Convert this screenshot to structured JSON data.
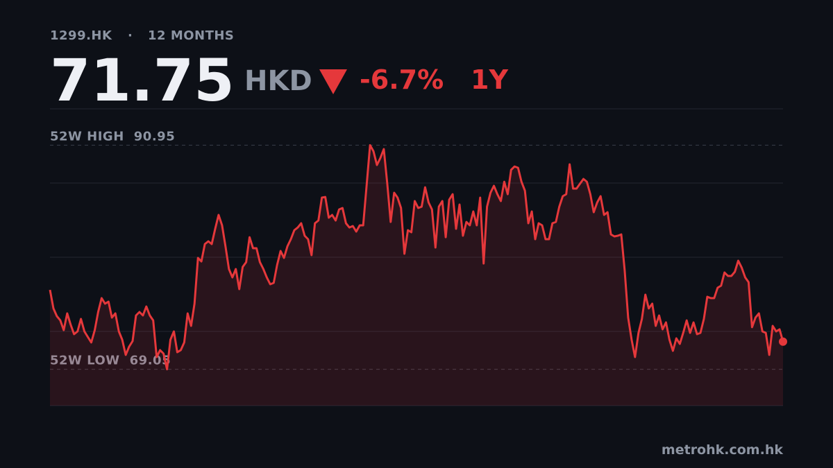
{
  "header": {
    "ticker": "1299.HK",
    "separator": "·",
    "period": "12 MONTHS",
    "price": "71.75",
    "currency": "HKD",
    "change": "-6.7%",
    "range": "1Y"
  },
  "chart_data": {
    "type": "line",
    "color": "#e5383b",
    "ylim": [
      65.5,
      94.5
    ],
    "yticks": [
      65.5,
      72.75,
      80,
      87.25,
      94.5
    ],
    "grid": true,
    "high": {
      "label": "52W HIGH",
      "value": 90.95
    },
    "low": {
      "label": "52W LOW",
      "value": 69.05
    },
    "values": [
      76.81,
      74.99,
      74.24,
      73.83,
      72.88,
      74.51,
      73.43,
      72.48,
      72.75,
      73.97,
      72.75,
      72.21,
      71.67,
      72.88,
      74.65,
      76.0,
      75.46,
      75.66,
      74.1,
      74.51,
      72.75,
      71.94,
      70.45,
      71.26,
      71.8,
      74.31,
      74.65,
      74.31,
      75.19,
      74.31,
      73.83,
      70.24,
      70.92,
      70.58,
      69.05,
      71.94,
      72.75,
      70.72,
      70.92,
      71.67,
      74.51,
      73.29,
      75.46,
      79.93,
      79.59,
      81.29,
      81.56,
      81.29,
      82.78,
      84.13,
      83.12,
      81.08,
      78.85,
      78.03,
      78.85,
      76.88,
      79.05,
      79.52,
      81.96,
      80.88,
      80.88,
      79.52,
      78.85,
      78.03,
      77.36,
      77.49,
      79.25,
      80.61,
      79.93,
      81.08,
      81.76,
      82.64,
      82.91,
      83.32,
      82.1,
      81.76,
      80.2,
      83.32,
      83.59,
      85.83,
      85.89,
      83.86,
      84.13,
      83.59,
      84.67,
      84.81,
      83.32,
      82.91,
      83.05,
      82.51,
      83.12,
      83.12,
      86.98,
      90.95,
      90.36,
      89.01,
      89.69,
      90.57,
      87.18,
      83.45,
      86.3,
      85.83,
      84.81,
      80.34,
      82.64,
      82.44,
      85.49,
      84.81,
      84.94,
      86.84,
      85.35,
      84.67,
      80.95,
      84.94,
      85.49,
      81.96,
      85.62,
      86.16,
      82.78,
      85.15,
      82.1,
      83.45,
      83.12,
      84.47,
      83.12,
      85.83,
      79.39,
      84.94,
      86.3,
      86.98,
      86.16,
      85.49,
      87.38,
      86.16,
      88.54,
      88.87,
      88.74,
      87.38,
      86.5,
      83.32,
      84.47,
      81.76,
      83.32,
      83.12,
      81.76,
      81.76,
      83.32,
      83.45,
      84.94,
      85.96,
      86.16,
      89.08,
      86.71,
      86.71,
      87.18,
      87.65,
      87.38,
      86.16,
      84.4,
      85.35,
      85.96,
      84.13,
      84.4,
      82.23,
      82.03,
      82.1,
      82.23,
      78.71,
      74.1,
      71.94,
      70.24,
      72.61,
      73.97,
      76.34,
      74.99,
      75.46,
      73.29,
      74.31,
      72.95,
      73.63,
      71.94,
      70.85,
      72.07,
      71.53,
      72.61,
      73.83,
      72.61,
      73.63,
      72.48,
      72.61,
      73.97,
      76.14,
      76.0,
      76.0,
      77.02,
      77.22,
      78.51,
      78.17,
      78.17,
      78.58,
      79.66,
      78.98,
      78.03,
      77.56,
      73.16,
      74.1,
      74.51,
      72.75,
      72.61,
      70.45,
      73.29,
      72.75,
      72.95,
      71.75
    ]
  },
  "footer": {
    "source": "metrohk.com.hk"
  }
}
